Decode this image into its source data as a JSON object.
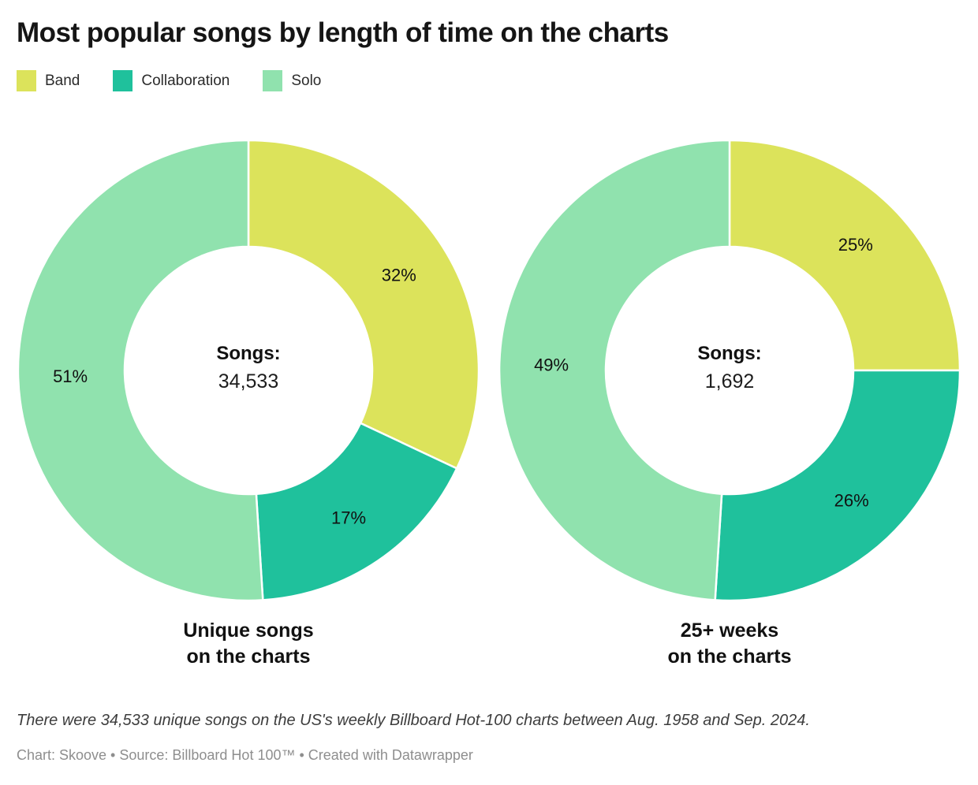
{
  "chart_data": {
    "type": "pie",
    "title": "Most popular songs by length of time on the charts",
    "legend": [
      {
        "label": "Band",
        "color": "#dce35b"
      },
      {
        "label": "Collaboration",
        "color": "#1fc19c"
      },
      {
        "label": "Solo",
        "color": "#90e2ae"
      }
    ],
    "layout_hints": {
      "start_angle": "12-o-clock",
      "direction": "clockwise",
      "outer_radius": 292,
      "inner_radius": 157,
      "label_radius": 226,
      "slice_separator_color": "#ffffff"
    },
    "charts": [
      {
        "caption_lines": [
          "Unique songs",
          "on the charts"
        ],
        "center_label": "Songs:",
        "center_value": "34,533",
        "slices": [
          {
            "name": "Band",
            "pct": 32,
            "label": "32%"
          },
          {
            "name": "Collaboration",
            "pct": 17,
            "label": "17%"
          },
          {
            "name": "Solo",
            "pct": 51,
            "label": "51%"
          }
        ]
      },
      {
        "caption_lines": [
          "25+ weeks",
          "on the charts"
        ],
        "center_label": "Songs:",
        "center_value": "1,692",
        "slices": [
          {
            "name": "Band",
            "pct": 25,
            "label": "25%"
          },
          {
            "name": "Collaboration",
            "pct": 26,
            "label": "26%"
          },
          {
            "name": "Solo",
            "pct": 49,
            "label": "49%"
          }
        ]
      }
    ]
  },
  "footer": {
    "note": "There were 34,533 unique songs on the US's weekly Billboard Hot-100 charts between Aug. 1958 and Sep. 2024.",
    "credit": "Chart: Skoove • Source: Billboard Hot 100™ • Created with Datawrapper"
  }
}
